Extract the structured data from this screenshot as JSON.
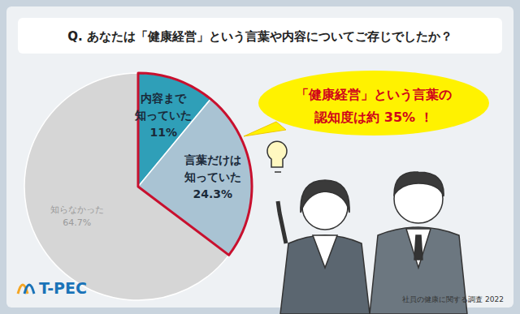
{
  "chart_data": {
    "type": "pie",
    "title": "Q. あなたは「健康経営」という言葉や内容についてご存じでしたか？",
    "categories": [
      "内容まで\n知っていた",
      "言葉だけは\n知っていた",
      "知らなかった"
    ],
    "values": [
      11,
      24.3,
      64.7
    ],
    "value_labels": [
      "11%",
      "24.3%",
      "64.7%"
    ],
    "colors": [
      "#2f9fb8",
      "#a9c3d3",
      "#d6d6d6"
    ],
    "data_labels": true,
    "annotation": "「健康経営」という言葉の\n認知度は約 35% ！",
    "source": "社員の健康に関する調査 2022"
  },
  "logo": "T-PEC"
}
